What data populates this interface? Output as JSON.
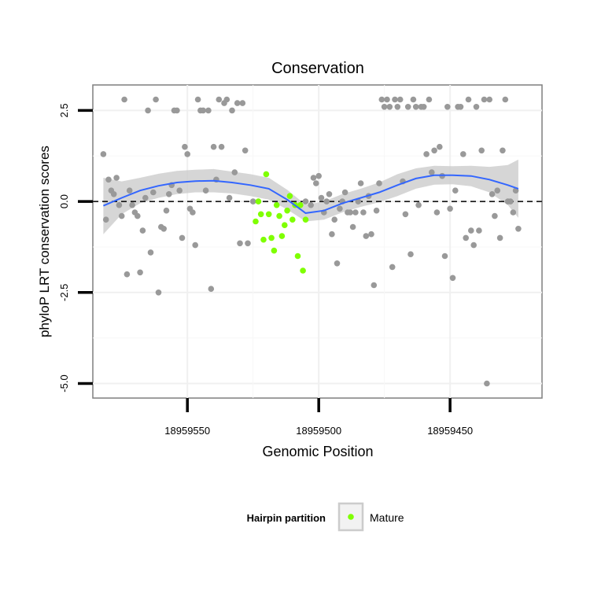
{
  "chart_data": {
    "type": "scatter",
    "title": "Conservation",
    "xlabel": "Genomic Position",
    "ylabel": "phyloP LRT conservation scores",
    "x_reversed": true,
    "xlim": [
      18959586,
      18959415
    ],
    "ylim": [
      -5.4,
      3.2
    ],
    "x_ticks": [
      18959550,
      18959500,
      18959450
    ],
    "x_tick_labels": [
      "18959550",
      "18959500",
      "18959450"
    ],
    "y_ticks": [
      -5.0,
      -2.5,
      0.0,
      2.5
    ],
    "y_tick_labels": [
      "-5.0",
      "-2.5",
      "0.0",
      "2.5"
    ],
    "grid": true,
    "reference_line": {
      "y": 0,
      "style": "dashed",
      "color": "#000000"
    },
    "legend": {
      "title": "Hairpin partition",
      "placement": "bottom",
      "entries": [
        {
          "label": "Mature",
          "color": "#7fff00"
        }
      ]
    },
    "colors": {
      "points": "#999999",
      "mature": "#7fff00",
      "smooth": "#3366ff",
      "ribbon": "#cccccc"
    },
    "series": [
      {
        "name": "",
        "points": [
          [
            18959582,
            1.3
          ],
          [
            18959581,
            -0.5
          ],
          [
            18959580,
            0.6
          ],
          [
            18959579,
            0.3
          ],
          [
            18959578,
            0.2
          ],
          [
            18959577,
            0.65
          ],
          [
            18959576,
            -0.1
          ],
          [
            18959575,
            -0.4
          ],
          [
            18959574,
            2.8
          ],
          [
            18959573,
            -2.0
          ],
          [
            18959572,
            0.3
          ],
          [
            18959571,
            -0.1
          ],
          [
            18959570,
            -0.3
          ],
          [
            18959569,
            -0.4
          ],
          [
            18959568,
            -1.95
          ],
          [
            18959567,
            -0.8
          ],
          [
            18959566,
            0.1
          ],
          [
            18959565,
            2.5
          ],
          [
            18959564,
            -1.4
          ],
          [
            18959563,
            0.25
          ],
          [
            18959562,
            2.8
          ],
          [
            18959561,
            -2.5
          ],
          [
            18959560,
            -0.7
          ],
          [
            18959559,
            -0.75
          ],
          [
            18959558,
            -0.25
          ],
          [
            18959557,
            0.2
          ],
          [
            18959556,
            0.45
          ],
          [
            18959555,
            2.5
          ],
          [
            18959554,
            2.5
          ],
          [
            18959553,
            0.3
          ],
          [
            18959552,
            -1.0
          ],
          [
            18959551,
            1.5
          ],
          [
            18959550,
            1.3
          ],
          [
            18959549,
            -0.2
          ],
          [
            18959548,
            -0.3
          ],
          [
            18959547,
            -1.2
          ],
          [
            18959546,
            2.8
          ],
          [
            18959545,
            2.5
          ],
          [
            18959544,
            2.5
          ],
          [
            18959543,
            0.3
          ],
          [
            18959542,
            2.5
          ],
          [
            18959541,
            -2.4
          ],
          [
            18959540,
            1.5
          ],
          [
            18959539,
            0.6
          ],
          [
            18959538,
            2.8
          ],
          [
            18959537,
            1.5
          ],
          [
            18959536,
            2.7
          ],
          [
            18959535,
            2.8
          ],
          [
            18959534,
            0.1
          ],
          [
            18959533,
            2.5
          ],
          [
            18959532,
            0.8
          ],
          [
            18959531,
            2.7
          ],
          [
            18959530,
            -1.15
          ],
          [
            18959529,
            2.7
          ],
          [
            18959528,
            1.4
          ],
          [
            18959527,
            -1.15
          ],
          [
            18959525,
            0.0
          ],
          [
            18959505,
            0.0
          ],
          [
            18959503,
            -0.1
          ],
          [
            18959502,
            0.65
          ],
          [
            18959501,
            0.5
          ],
          [
            18959500,
            0.7
          ],
          [
            18959499,
            0.1
          ],
          [
            18959498,
            -0.3
          ],
          [
            18959497,
            0.0
          ],
          [
            18959496,
            0.2
          ],
          [
            18959495,
            -0.9
          ],
          [
            18959494,
            -0.5
          ],
          [
            18959493,
            -1.7
          ],
          [
            18959492,
            -0.2
          ],
          [
            18959491,
            0.0
          ],
          [
            18959490,
            0.25
          ],
          [
            18959489,
            -0.3
          ],
          [
            18959488,
            -0.3
          ],
          [
            18959487,
            -0.7
          ],
          [
            18959486,
            -0.3
          ],
          [
            18959485,
            0.0
          ],
          [
            18959484,
            0.5
          ],
          [
            18959483,
            -0.3
          ],
          [
            18959482,
            -0.95
          ],
          [
            18959481,
            0.15
          ],
          [
            18959480,
            -0.9
          ],
          [
            18959479,
            -2.3
          ],
          [
            18959478,
            -0.25
          ],
          [
            18959477,
            0.5
          ],
          [
            18959476,
            2.8
          ],
          [
            18959475,
            2.6
          ],
          [
            18959474,
            2.8
          ],
          [
            18959473,
            2.6
          ],
          [
            18959472,
            -1.8
          ],
          [
            18959471,
            2.8
          ],
          [
            18959470,
            2.6
          ],
          [
            18959469,
            2.8
          ],
          [
            18959468,
            0.55
          ],
          [
            18959467,
            -0.35
          ],
          [
            18959466,
            2.6
          ],
          [
            18959465,
            -1.45
          ],
          [
            18959464,
            2.8
          ],
          [
            18959463,
            2.6
          ],
          [
            18959462,
            -0.1
          ],
          [
            18959461,
            2.6
          ],
          [
            18959460,
            2.6
          ],
          [
            18959459,
            1.3
          ],
          [
            18959458,
            2.8
          ],
          [
            18959457,
            0.8
          ],
          [
            18959456,
            1.4
          ],
          [
            18959455,
            -0.3
          ],
          [
            18959454,
            1.5
          ],
          [
            18959453,
            0.7
          ],
          [
            18959452,
            -1.5
          ],
          [
            18959451,
            2.6
          ],
          [
            18959450,
            -0.2
          ],
          [
            18959449,
            -2.1
          ],
          [
            18959448,
            0.3
          ],
          [
            18959447,
            2.6
          ],
          [
            18959446,
            2.6
          ],
          [
            18959445,
            1.3
          ],
          [
            18959444,
            -1.0
          ],
          [
            18959443,
            2.8
          ],
          [
            18959442,
            -0.8
          ],
          [
            18959441,
            -1.2
          ],
          [
            18959440,
            2.6
          ],
          [
            18959439,
            -0.8
          ],
          [
            18959438,
            1.4
          ],
          [
            18959437,
            2.8
          ],
          [
            18959436,
            -5.0
          ],
          [
            18959435,
            2.8
          ],
          [
            18959434,
            0.2
          ],
          [
            18959433,
            -0.4
          ],
          [
            18959432,
            0.3
          ],
          [
            18959431,
            -1.0
          ],
          [
            18959430,
            1.4
          ],
          [
            18959429,
            2.8
          ],
          [
            18959428,
            0.0
          ],
          [
            18959427,
            0.0
          ],
          [
            18959426,
            -0.3
          ],
          [
            18959425,
            0.3
          ],
          [
            18959424,
            -0.75
          ]
        ]
      },
      {
        "name": "Mature",
        "points": [
          [
            18959524,
            -0.55
          ],
          [
            18959523,
            0.0
          ],
          [
            18959522,
            -0.35
          ],
          [
            18959521,
            -1.05
          ],
          [
            18959520,
            0.75
          ],
          [
            18959519,
            -0.35
          ],
          [
            18959518,
            -1.0
          ],
          [
            18959517,
            -1.35
          ],
          [
            18959516,
            -0.1
          ],
          [
            18959515,
            -0.4
          ],
          [
            18959514,
            -0.95
          ],
          [
            18959513,
            -0.65
          ],
          [
            18959512,
            -0.25
          ],
          [
            18959511,
            0.15
          ],
          [
            18959510,
            -0.5
          ],
          [
            18959509,
            -0.1
          ],
          [
            18959508,
            -1.5
          ],
          [
            18959507,
            -0.1
          ],
          [
            18959506,
            -1.9
          ],
          [
            18959505,
            -0.5
          ]
        ]
      }
    ],
    "smooth": {
      "x": [
        18959582,
        18959575,
        18959568,
        18959561,
        18959554,
        18959547,
        18959540,
        18959533,
        18959526,
        18959519,
        18959512,
        18959505,
        18959498,
        18959491,
        18959484,
        18959477,
        18959470,
        18959463,
        18959456,
        18959449,
        18959442,
        18959435,
        18959428,
        18959424
      ],
      "y": [
        -0.12,
        0.1,
        0.3,
        0.43,
        0.52,
        0.56,
        0.57,
        0.52,
        0.45,
        0.35,
        0.05,
        -0.32,
        -0.25,
        -0.05,
        0.1,
        0.25,
        0.45,
        0.63,
        0.72,
        0.72,
        0.7,
        0.6,
        0.45,
        0.35
      ],
      "lower": [
        -0.9,
        -0.35,
        -0.05,
        0.1,
        0.2,
        0.25,
        0.25,
        0.22,
        0.15,
        0.05,
        -0.22,
        -0.55,
        -0.5,
        -0.3,
        -0.15,
        -0.02,
        0.15,
        0.35,
        0.46,
        0.47,
        0.42,
        0.25,
        -0.1,
        -0.45
      ],
      "upper": [
        0.65,
        0.55,
        0.65,
        0.76,
        0.84,
        0.87,
        0.89,
        0.82,
        0.75,
        0.65,
        0.32,
        -0.09,
        0.0,
        0.2,
        0.35,
        0.52,
        0.75,
        0.91,
        0.98,
        0.97,
        0.98,
        0.95,
        1.0,
        1.15
      ]
    }
  }
}
